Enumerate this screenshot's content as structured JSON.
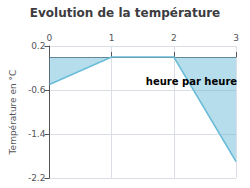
{
  "chart_data": {
    "type": "area",
    "title": "Evolution de la température",
    "ylabel": "Température en °C",
    "x": [
      0,
      1,
      2,
      3
    ],
    "values": [
      -0.5,
      0.0,
      0.0,
      -1.9
    ],
    "color": "#6bbcd8",
    "xlim": [
      0,
      3
    ],
    "xticks": [
      0,
      1,
      2,
      3
    ],
    "ylim": [
      -2.2,
      0.2
    ],
    "yticks": [
      0.2,
      -0.6,
      -1.4,
      -2.2
    ],
    "grid": true,
    "annotations": [
      {
        "text": "heure par heure",
        "x": 1.55,
        "y": -0.35
      }
    ]
  }
}
